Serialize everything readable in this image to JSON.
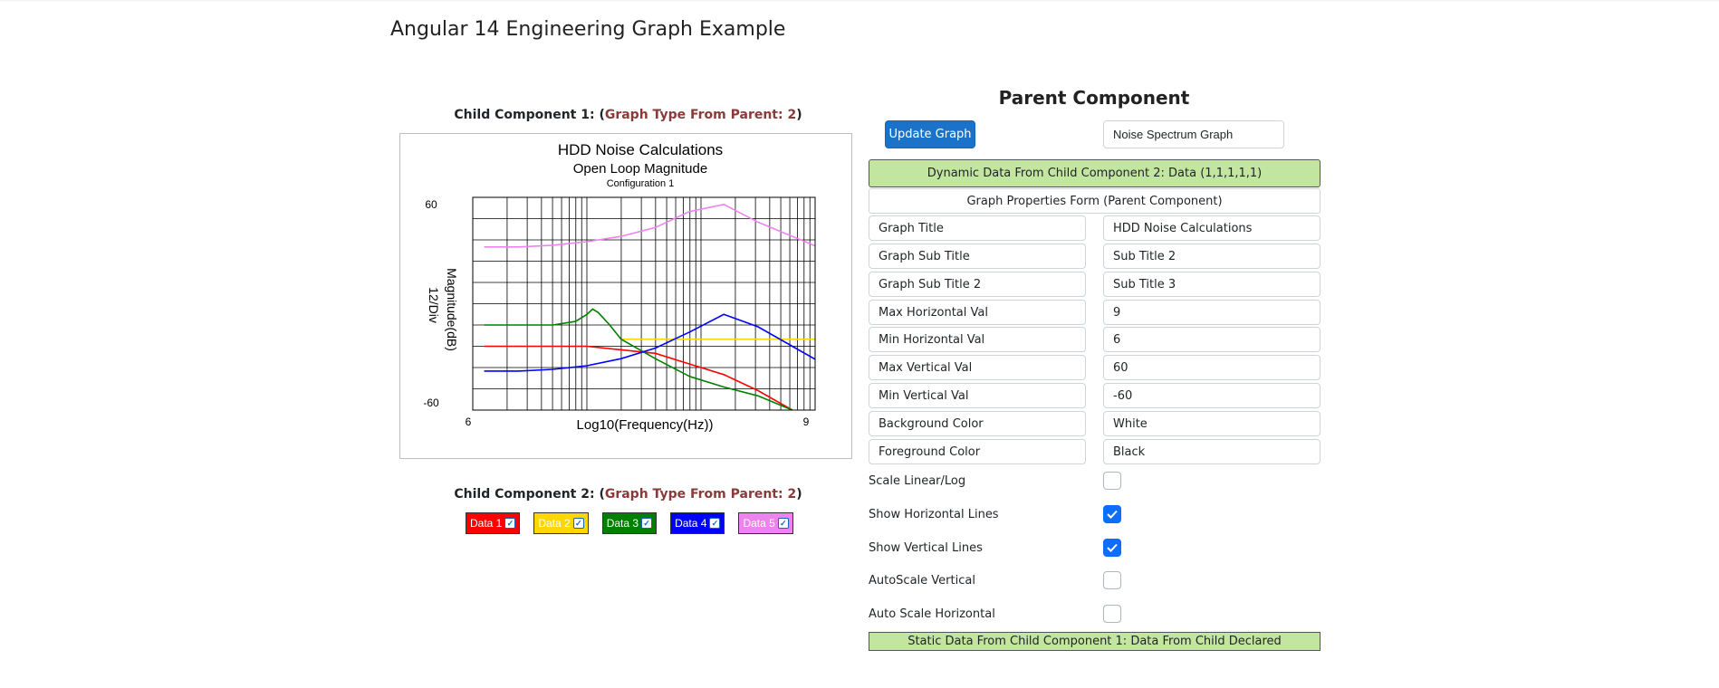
{
  "page": {
    "title": "Angular 14 Engineering Graph Example"
  },
  "child1": {
    "heading_prefix": "Child Component 1: (",
    "heading_graph_type": "Graph Type From Parent: 2",
    "heading_suffix": ")"
  },
  "child2": {
    "heading_prefix": "Child Component 2: (",
    "heading_graph_type": "Graph Type From Parent: 2",
    "heading_suffix": ")"
  },
  "chart_data": {
    "type": "line",
    "title": "HDD Noise Calculations",
    "subtitle": "Open Loop Magnitude",
    "subtitle2": "Configuration 1",
    "xlabel": "Log10(Frequency(Hz))",
    "ylabel": "Magnitude(dB)",
    "ylabel2": "12/Div",
    "x_tick_labels": {
      "min": "6",
      "max": "9"
    },
    "y_tick_labels": {
      "max": "60",
      "min": "-60"
    },
    "xlim": [
      6,
      9
    ],
    "ylim": [
      -60,
      60
    ],
    "xscale": "log",
    "grid": true,
    "series": [
      {
        "name": "Data 1",
        "color": "#ff0000",
        "x": [
          6.1,
          6.4,
          6.7,
          7.0,
          7.3,
          7.6,
          7.9,
          8.2,
          8.5,
          8.8
        ],
        "y": [
          -24,
          -24,
          -24,
          -24,
          -26,
          -28,
          -34,
          -40,
          -49,
          -60
        ]
      },
      {
        "name": "Data 2",
        "color": "#ffd700",
        "x": [
          7.3,
          7.5,
          7.7,
          7.9,
          8.1,
          8.3,
          8.5,
          8.7,
          8.9,
          9.1
        ],
        "y": [
          -20,
          -20,
          -20,
          -20,
          -20,
          -20,
          -20,
          -20,
          -20,
          -20
        ]
      },
      {
        "name": "Data 3",
        "color": "#008000",
        "x": [
          6.1,
          6.4,
          6.7,
          6.9,
          7.0,
          7.05,
          7.1,
          7.2,
          7.3,
          7.6,
          7.9,
          8.2,
          8.5,
          8.8
        ],
        "y": [
          -12,
          -12,
          -12,
          -10,
          -6,
          -3,
          -5,
          -12,
          -20,
          -31,
          -41,
          -47,
          -52,
          -60
        ]
      },
      {
        "name": "Data 4",
        "color": "#0000ff",
        "x": [
          6.1,
          6.4,
          6.7,
          7.0,
          7.3,
          7.6,
          7.9,
          8.2,
          8.5,
          8.8,
          9.1
        ],
        "y": [
          -38,
          -38,
          -37,
          -35,
          -31,
          -25,
          -16,
          -6,
          -13,
          -24,
          -35
        ]
      },
      {
        "name": "Data 5",
        "color": "#ee82ee",
        "x": [
          6.1,
          6.4,
          6.7,
          7.0,
          7.3,
          7.6,
          7.9,
          8.2,
          8.5,
          8.8,
          9.1
        ],
        "y": [
          32,
          32,
          33,
          35,
          38,
          43,
          52,
          56,
          46,
          38,
          30
        ]
      }
    ]
  },
  "legend": [
    {
      "label": "Data 1",
      "bg": "#ff0000",
      "fg": "#ffffff",
      "checked": true
    },
    {
      "label": "Data 2",
      "bg": "#ffd700",
      "fg": "#ffffff",
      "checked": true
    },
    {
      "label": "Data 3",
      "bg": "#008000",
      "fg": "#ffffff",
      "checked": true
    },
    {
      "label": "Data 4",
      "bg": "#0000ff",
      "fg": "#ffffff",
      "checked": true
    },
    {
      "label": "Data 5",
      "bg": "#ee82ee",
      "fg": "#ffffff",
      "checked": true
    }
  ],
  "parent": {
    "heading": "Parent Component",
    "update_button": "Update Graph",
    "graph_type_select": "Noise Spectrum Graph",
    "dynamic_banner": "Dynamic Data From Child Component 2: Data (1,1,1,1,1)",
    "form_banner": "Graph Properties Form (Parent Component)",
    "static_banner": "Static Data From Child Component 1: Data From Child Declared",
    "props": [
      {
        "label": "Graph Title",
        "value": "HDD Noise Calculations"
      },
      {
        "label": "Graph Sub Title",
        "value": "Sub Title 2"
      },
      {
        "label": "Graph Sub Title 2",
        "value": "Sub Title 3"
      },
      {
        "label": "Max Horizontal Val",
        "value": "9"
      },
      {
        "label": "Min Horizontal Val",
        "value": "6"
      },
      {
        "label": "Max Vertical Val",
        "value": "60"
      },
      {
        "label": "Min Vertical Val",
        "value": "-60"
      },
      {
        "label": "Background Color",
        "value": "White"
      },
      {
        "label": "Foreground Color",
        "value": "Black"
      }
    ],
    "options": [
      {
        "label": "Scale Linear/Log",
        "checked": false
      },
      {
        "label": "Show Horizontal Lines",
        "checked": true
      },
      {
        "label": "Show Vertical Lines",
        "checked": true
      },
      {
        "label": "AutoScale Vertical",
        "checked": false
      },
      {
        "label": "Auto Scale Horizontal",
        "checked": false
      }
    ],
    "accent_color": "#0d6efd",
    "banner_color": "#c2e6a0"
  }
}
